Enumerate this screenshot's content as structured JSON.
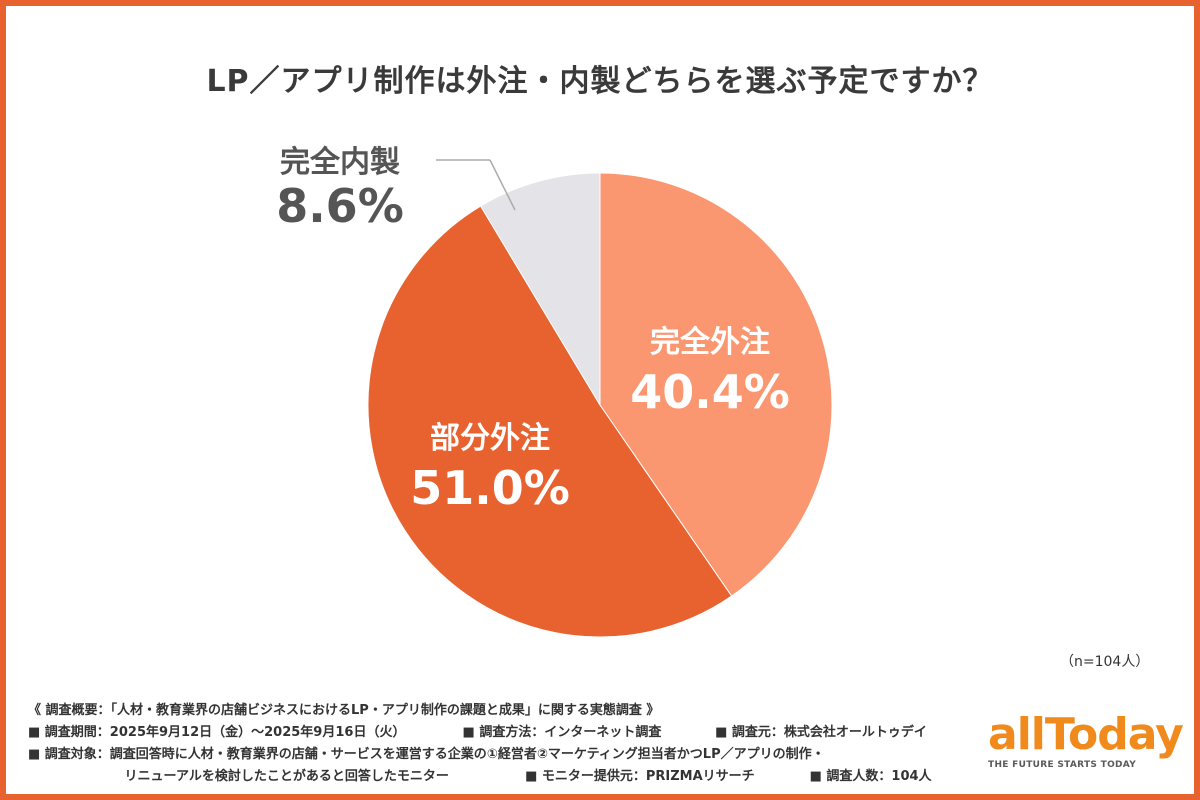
{
  "chart_data": {
    "type": "pie",
    "title": "LP／アプリ制作は外注・内製どちらを選ぶ予定ですか？",
    "slices": [
      {
        "label": "完全外注",
        "value": 40.4,
        "value_text": "40.4%",
        "color": "#fa9670"
      },
      {
        "label": "部分外注",
        "value": 51.0,
        "value_text": "51.0%",
        "color": "#e8622f"
      },
      {
        "label": "完全内製",
        "value": 8.6,
        "value_text": "8.6%",
        "color": "#e4e3e8"
      }
    ],
    "start_angle": "12 o'clock, clockwise",
    "note": "（n=104人）"
  },
  "survey": {
    "heading": "《 調査概要：「人材・教育業界の店舗ビジネスにおけるLP・アプリ制作の課題と成果」に関する実態調査 》",
    "period": "■ 調査期間：2025年9月12日（金）〜2025年9月16日（火）",
    "method": "■ 調査方法：インターネット調査",
    "source": "■ 調査元：株式会社オールトゥデイ",
    "target_line1": "■ 調査対象：調査回答時に人材・教育業界の店舗・サービスを運営する企業の①経営者②マーケティング担当者かつLP／アプリの制作・",
    "target_line2": "リニューアルを検討したことがあると回答したモニター",
    "provider": "■ モニター提供元：PRIZMAリサーチ",
    "count": "■ 調査人数：104人"
  },
  "logo": {
    "word": "allToday",
    "tagline": "THE FUTURE STARTS TODAY"
  },
  "colors": {
    "accent": "#e8622f",
    "logo": "#f08a1c"
  }
}
